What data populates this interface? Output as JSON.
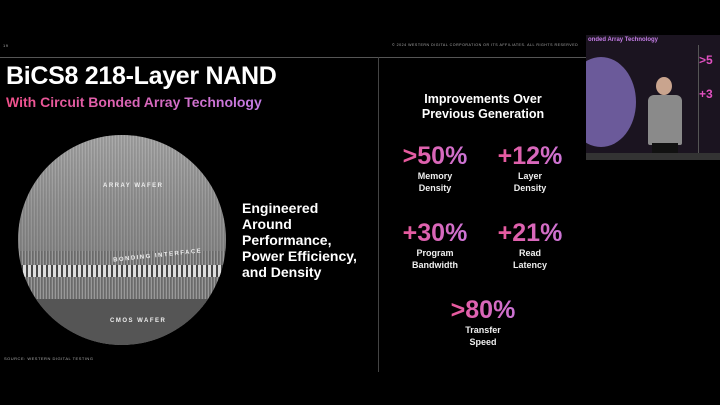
{
  "slide": {
    "page_number": "19",
    "copyright": "© 2024 WESTERN DIGITAL CORPORATION OR ITS AFFILIATES. ALL RIGHTS RESERVED",
    "title": "BiCS8 218-Layer NAND",
    "subtitle": "With Circuit Bonded Array Technology",
    "source": "SOURCE: WESTERN DIGITAL TESTING",
    "wafer_labels": {
      "array": "ARRAY WAFER",
      "bonding": "BONDING INTERFACE",
      "cmos": "CMOS WAFER"
    },
    "engineered": [
      "Engineered",
      "Around",
      "Performance,",
      "Power Efficiency,",
      "and Density"
    ],
    "improvements_title": [
      "Improvements Over",
      "Previous Generation"
    ],
    "stats": [
      {
        "value": ">50%",
        "label": [
          "Memory",
          "Density"
        ]
      },
      {
        "value": "+12%",
        "label": [
          "Layer",
          "Density"
        ]
      },
      {
        "value": "+30%",
        "label": [
          "Program",
          "Bandwidth"
        ]
      },
      {
        "value": "+21%",
        "label": [
          "Read",
          "Latency"
        ]
      },
      {
        "value": ">80%",
        "label": [
          "Transfer",
          "Speed"
        ]
      }
    ],
    "accent_colors": [
      "#f0508a",
      "#c47ce6"
    ]
  },
  "inset_video": {
    "caption": "onded Array Technology"
  }
}
